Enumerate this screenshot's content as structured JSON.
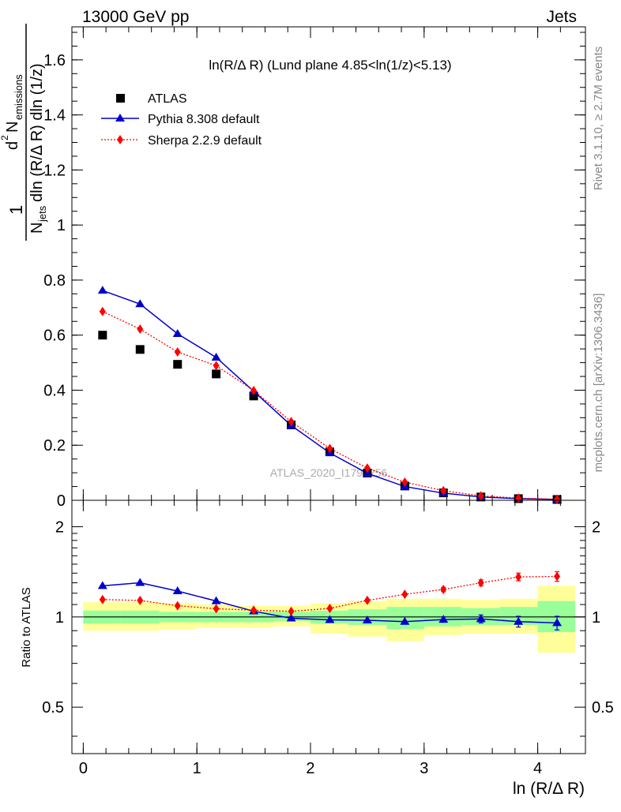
{
  "header": {
    "left": "13000 GeV pp",
    "right": "Jets"
  },
  "side_labels": {
    "rivet": "Rivet 3.1.10, ≥ 2.7M events",
    "mcplots": "mcplots.cern.ch [arXiv:1306.3436]"
  },
  "watermark": "ATLAS_2020_I1790256",
  "colors": {
    "atlas": "#000000",
    "pythia": "#0000cc",
    "sherpa": "#ff0000",
    "band_inner": "#99ff99",
    "band_outer": "#ffff99"
  },
  "chart_data": [
    {
      "type": "scatter",
      "title": "ln(R/Δ R) (Lund plane 4.85<ln(1/z)<5.13)",
      "xlabel": "ln (R/Δ R)",
      "ylabel": "1/N_jets d²N_emissions / dln(R/Δ R) dln(1/z)",
      "ylabel_parts": {
        "one": "1",
        "d2": "d",
        "two": "2",
        "N": "N",
        "emissions": "emissions",
        "Njets": "N",
        "jets": "jets",
        "dln": "dln (R/Δ R) dln (1/z)"
      },
      "xlim": [
        -0.1,
        4.42
      ],
      "ylim": [
        0,
        1.72
      ],
      "yticks": [
        0,
        0.2,
        0.4,
        0.6,
        0.8,
        1,
        1.2,
        1.4,
        1.6
      ],
      "ytick_labels": [
        "0",
        "0.2",
        "0.4",
        "0.6",
        "0.8",
        "1",
        "1.2",
        "1.4",
        "1.6"
      ],
      "legend_position": "top-left",
      "x": [
        0.17,
        0.5,
        0.83,
        1.17,
        1.5,
        1.83,
        2.17,
        2.5,
        2.83,
        3.17,
        3.5,
        3.83,
        4.17
      ],
      "series": [
        {
          "name": "ATLAS",
          "marker": "square",
          "values": [
            0.6,
            0.548,
            0.494,
            0.459,
            0.379,
            0.274,
            0.176,
            0.099,
            0.052,
            0.027,
            0.012,
            0.006,
            0.003
          ]
        },
        {
          "name": "Pythia 8.308 default",
          "marker": "triangle",
          "line": "solid",
          "values": [
            0.762,
            0.713,
            0.605,
            0.519,
            0.396,
            0.272,
            0.172,
            0.098,
            0.05,
            0.026,
            0.012,
            0.006,
            0.003
          ]
        },
        {
          "name": "Sherpa 2.2.9 default",
          "marker": "diamond",
          "line": "dotted",
          "values": [
            0.686,
            0.622,
            0.539,
            0.489,
            0.399,
            0.286,
            0.188,
            0.117,
            0.066,
            0.035,
            0.016,
            0.008,
            0.004
          ]
        }
      ]
    },
    {
      "type": "scatter",
      "ylabel": "Ratio to ATLAS",
      "xlabel": "ln (R/Δ R)",
      "xlim": [
        -0.1,
        4.42
      ],
      "ylim": [
        0.35,
        2.45
      ],
      "yscale": "log",
      "yticks": [
        0.5,
        1,
        2
      ],
      "ytick_labels": [
        "0.5",
        "1",
        "2"
      ],
      "xticks": [
        0,
        1,
        2,
        3,
        4
      ],
      "xtick_labels": [
        "0",
        "1",
        "2",
        "3",
        "4"
      ],
      "x_edges": [
        0,
        0.33,
        0.67,
        1.0,
        1.33,
        1.67,
        2.0,
        2.33,
        2.67,
        3.0,
        3.33,
        3.67,
        4.0,
        4.33
      ],
      "band_inner": {
        "lo": [
          0.95,
          0.95,
          0.96,
          0.96,
          0.96,
          0.97,
          0.95,
          0.94,
          0.91,
          0.93,
          0.94,
          0.94,
          0.89
        ],
        "hi": [
          1.05,
          1.05,
          1.04,
          1.04,
          1.04,
          1.04,
          1.05,
          1.06,
          1.08,
          1.08,
          1.07,
          1.08,
          1.13
        ]
      },
      "band_outer": {
        "lo": [
          0.9,
          0.9,
          0.91,
          0.92,
          0.92,
          0.93,
          0.88,
          0.86,
          0.83,
          0.87,
          0.88,
          0.88,
          0.76
        ],
        "hi": [
          1.12,
          1.12,
          1.11,
          1.1,
          1.09,
          1.09,
          1.11,
          1.13,
          1.15,
          1.15,
          1.14,
          1.15,
          1.27
        ]
      },
      "series": [
        {
          "name": "Pythia 8.308 default",
          "values": [
            1.27,
            1.3,
            1.22,
            1.13,
            1.045,
            0.99,
            0.978,
            0.975,
            0.965,
            0.98,
            0.985,
            0.965,
            0.955
          ],
          "errors": [
            0.005,
            0.005,
            0.005,
            0.005,
            0.005,
            0.006,
            0.008,
            0.01,
            0.012,
            0.02,
            0.03,
            0.04,
            0.05
          ]
        },
        {
          "name": "Sherpa 2.2.9 default",
          "values": [
            1.143,
            1.135,
            1.09,
            1.065,
            1.053,
            1.044,
            1.068,
            1.136,
            1.19,
            1.235,
            1.3,
            1.36,
            1.365
          ],
          "errors": [
            0.005,
            0.005,
            0.005,
            0.005,
            0.005,
            0.006,
            0.008,
            0.01,
            0.012,
            0.02,
            0.03,
            0.04,
            0.05
          ]
        }
      ]
    }
  ]
}
